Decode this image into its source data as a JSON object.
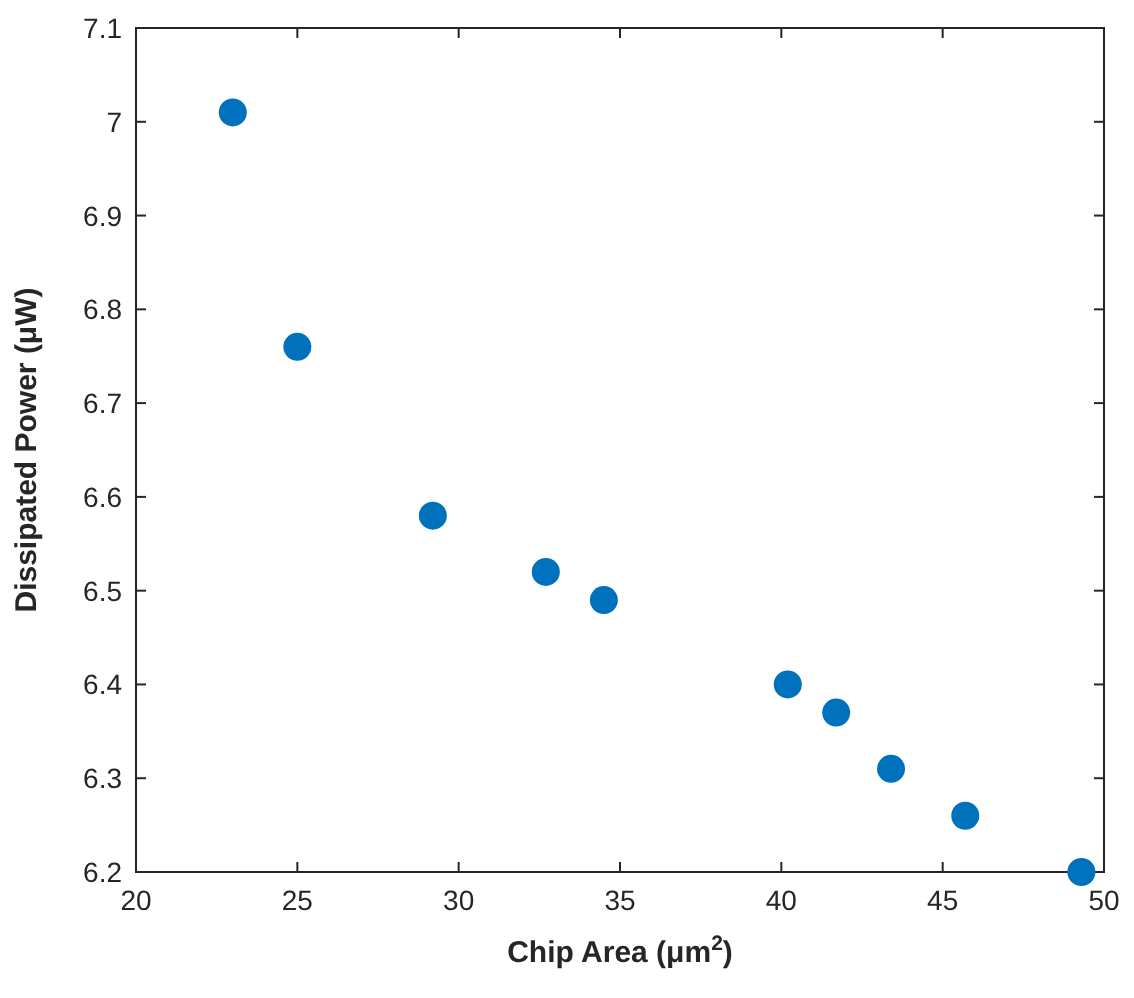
{
  "chart_data": {
    "type": "scatter",
    "xlabel": "Chip Area (μm$^{2}$)",
    "ylabel": "Dissipated Power (μW)",
    "x": [
      23.0,
      25.0,
      29.2,
      32.7,
      34.5,
      40.2,
      41.7,
      43.4,
      45.7,
      49.3
    ],
    "values": [
      7.01,
      6.76,
      6.58,
      6.52,
      6.49,
      6.4,
      6.37,
      6.31,
      6.26,
      6.2
    ],
    "color": "#0072bd",
    "marker": "circle",
    "grid": false,
    "xlim": [
      20,
      50
    ],
    "xticks": [
      20,
      25,
      30,
      35,
      40,
      45,
      50
    ],
    "ylim": [
      6.2,
      7.1
    ],
    "yticks": [
      6.2,
      6.3,
      6.4,
      6.5,
      6.6,
      6.7,
      6.8,
      6.9,
      7,
      7.1
    ]
  }
}
